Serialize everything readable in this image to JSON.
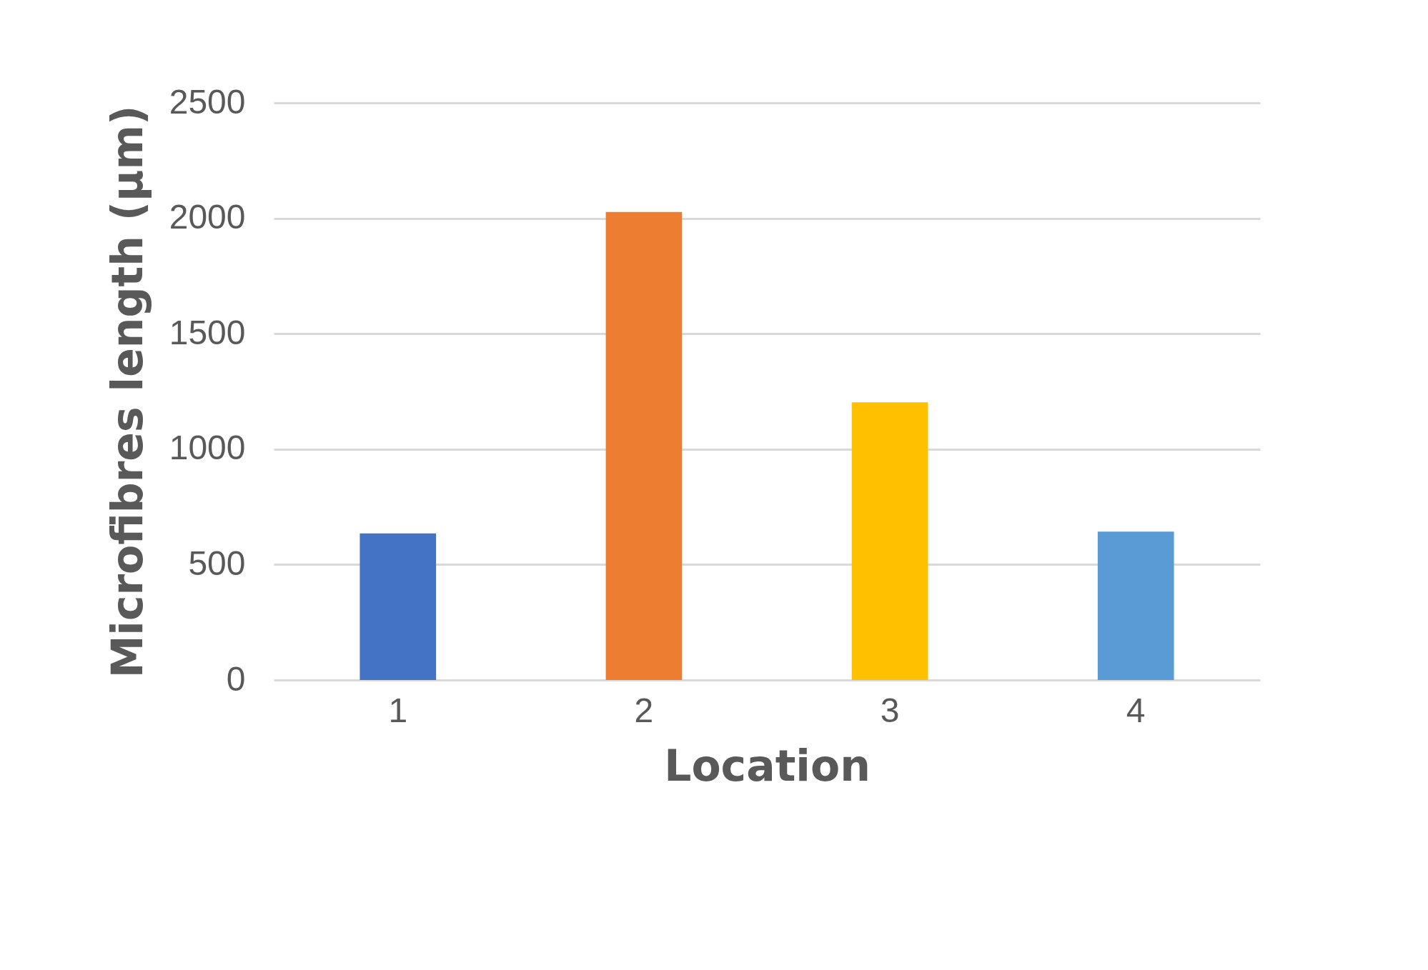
{
  "chart_data": {
    "type": "bar",
    "xlabel": "Location",
    "ylabel": "Microfibres length (µm)",
    "categories": [
      "1",
      "2",
      "3",
      "4"
    ],
    "values": [
      635,
      2027,
      1203,
      643
    ],
    "colors": [
      "#4472c4",
      "#ed7d31",
      "#ffc000",
      "#5b9bd5"
    ],
    "ylim": [
      0,
      2500
    ],
    "yticks": [
      0,
      500,
      1000,
      1500,
      2000,
      2500
    ],
    "grid": "y",
    "legend": false
  }
}
